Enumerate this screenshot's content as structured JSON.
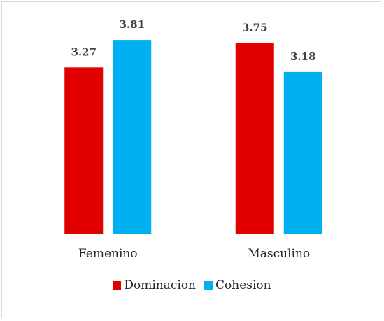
{
  "chart_data": {
    "type": "bar",
    "categories": [
      "Femenino",
      "Masculino"
    ],
    "series": [
      {
        "name": "Dominacion",
        "color": "#e00000",
        "values": [
          3.27,
          3.75
        ]
      },
      {
        "name": "Cohesion",
        "color": "#00b0f0",
        "values": [
          3.81,
          3.18
        ]
      }
    ],
    "title": "",
    "xlabel": "",
    "ylabel": "",
    "ylim": [
      0,
      4.1
    ],
    "grid": false,
    "legend": "bottom",
    "data_labels": true
  }
}
